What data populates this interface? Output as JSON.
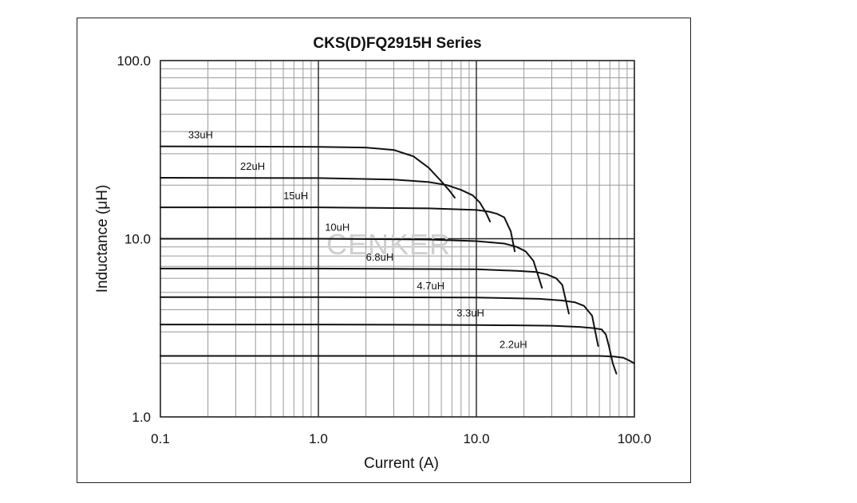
{
  "chart_data": {
    "type": "line",
    "title": "CKS(D)FQ2915H Series",
    "xlabel": "Current (A)",
    "ylabel": "Inductance (μH)",
    "xscale": "log",
    "yscale": "log",
    "xlim": [
      0.1,
      100.0
    ],
    "ylim": [
      1.0,
      100.0
    ],
    "x_tick_labels": [
      "0.1",
      "1.0",
      "10.0",
      "100.0"
    ],
    "y_tick_labels": [
      "1.0",
      "10.0",
      "100.0"
    ],
    "grid": true,
    "watermark": "CENKER",
    "series": [
      {
        "name": "33uH",
        "x": [
          0.1,
          1,
          2,
          3,
          4,
          5,
          6,
          6.8,
          7.3
        ],
        "y": [
          33,
          32.8,
          32.5,
          31.5,
          29,
          25,
          21,
          18.5,
          17
        ]
      },
      {
        "name": "22uH",
        "x": [
          0.1,
          1,
          3,
          5,
          6.5,
          8,
          9.5,
          10.5,
          11.5,
          12.2
        ],
        "y": [
          22,
          21.9,
          21.5,
          20.8,
          20,
          18.8,
          17.5,
          16,
          14,
          12.5
        ]
      },
      {
        "name": "15uH",
        "x": [
          0.1,
          1,
          5,
          10,
          12,
          13.5,
          15,
          16.5,
          17.5
        ],
        "y": [
          15,
          15,
          14.8,
          14.5,
          14.2,
          13.8,
          13.2,
          11,
          8.5
        ]
      },
      {
        "name": "10uH",
        "x": [
          0.1,
          1,
          5,
          10,
          15,
          18,
          20.5,
          23,
          26
        ],
        "y": [
          10,
          10,
          9.9,
          9.7,
          9.4,
          9.0,
          8.5,
          7.5,
          5.3
        ]
      },
      {
        "name": "6.8uH",
        "x": [
          0.1,
          1,
          10,
          18,
          24,
          28,
          32,
          35,
          38.5
        ],
        "y": [
          6.8,
          6.8,
          6.75,
          6.6,
          6.5,
          6.3,
          6.0,
          5.5,
          3.8
        ]
      },
      {
        "name": "4.7uH",
        "x": [
          0.1,
          1,
          10,
          25,
          35,
          42,
          48,
          54,
          59
        ],
        "y": [
          4.7,
          4.7,
          4.68,
          4.6,
          4.5,
          4.4,
          4.2,
          3.7,
          2.5
        ]
      },
      {
        "name": "3.3uH",
        "x": [
          0.1,
          1,
          10,
          30,
          45,
          55,
          62,
          66,
          69,
          73,
          77
        ],
        "y": [
          3.3,
          3.3,
          3.28,
          3.25,
          3.2,
          3.15,
          3.1,
          2.9,
          2.5,
          2.0,
          1.75
        ]
      },
      {
        "name": "2.2uH",
        "x": [
          0.1,
          1,
          10,
          40,
          60,
          75,
          85,
          92,
          100
        ],
        "y": [
          2.2,
          2.2,
          2.2,
          2.2,
          2.2,
          2.18,
          2.15,
          2.08,
          2.0
        ]
      }
    ]
  }
}
